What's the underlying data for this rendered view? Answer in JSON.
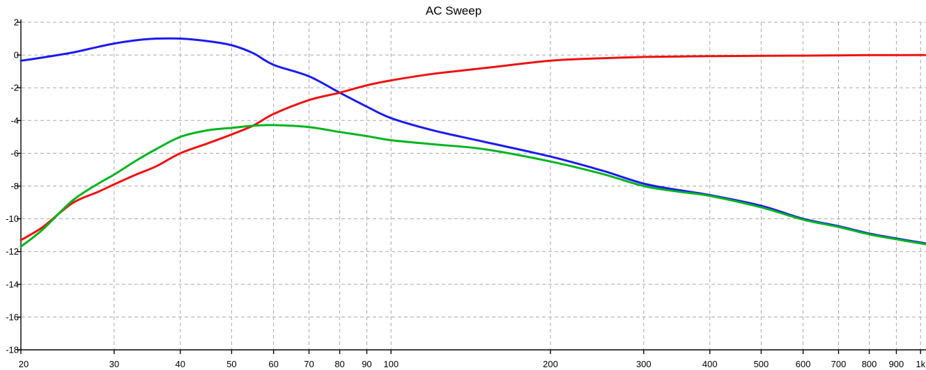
{
  "title": "AC Sweep",
  "colors": {
    "background": "#ffffff",
    "axis": "#000000",
    "grid": "#a8a8a8",
    "title_text": "#000000",
    "tick_text": "#000000"
  },
  "chart_data": {
    "type": "line",
    "title": "AC Sweep",
    "xlabel": "",
    "ylabel": "",
    "x_scale": "log",
    "xlim": [
      20,
      1020
    ],
    "ylim": [
      -18,
      2
    ],
    "grid": "dashed",
    "legend": "none",
    "x_ticks": [
      {
        "value": 20,
        "label": "20"
      },
      {
        "value": 30,
        "label": "30"
      },
      {
        "value": 40,
        "label": "40"
      },
      {
        "value": 50,
        "label": "50"
      },
      {
        "value": 60,
        "label": "60"
      },
      {
        "value": 70,
        "label": "70"
      },
      {
        "value": 80,
        "label": "80"
      },
      {
        "value": 90,
        "label": "90"
      },
      {
        "value": 100,
        "label": "100"
      },
      {
        "value": 200,
        "label": "200"
      },
      {
        "value": 300,
        "label": "300"
      },
      {
        "value": 400,
        "label": "400"
      },
      {
        "value": 500,
        "label": "500"
      },
      {
        "value": 600,
        "label": "600"
      },
      {
        "value": 700,
        "label": "700"
      },
      {
        "value": 800,
        "label": "800"
      },
      {
        "value": 900,
        "label": "900"
      },
      {
        "value": 1000,
        "label": "1k"
      }
    ],
    "y_ticks": [
      {
        "value": 2,
        "label": "2"
      },
      {
        "value": 0,
        "label": "0"
      },
      {
        "value": -2,
        "label": "-2"
      },
      {
        "value": -4,
        "label": "-4"
      },
      {
        "value": -6,
        "label": "-6"
      },
      {
        "value": -8,
        "label": "-8"
      },
      {
        "value": -10,
        "label": "-10"
      },
      {
        "value": -12,
        "label": "-12"
      },
      {
        "value": -14,
        "label": "-14"
      },
      {
        "value": -16,
        "label": "-16"
      },
      {
        "value": -18,
        "label": "-18"
      }
    ],
    "x": [
      20,
      22,
      25,
      28,
      30,
      33,
      36,
      40,
      45,
      50,
      55,
      60,
      70,
      80,
      90,
      100,
      120,
      150,
      200,
      250,
      300,
      350,
      400,
      500,
      600,
      700,
      800,
      900,
      1000,
      1020
    ],
    "series": [
      {
        "name": "blue",
        "color": "#1a1af0",
        "values": [
          -0.35,
          -0.15,
          0.15,
          0.5,
          0.7,
          0.9,
          1.0,
          1.0,
          0.85,
          0.6,
          0.1,
          -0.6,
          -1.3,
          -2.3,
          -3.15,
          -3.85,
          -4.6,
          -5.3,
          -6.2,
          -7.05,
          -7.85,
          -8.25,
          -8.55,
          -9.2,
          -10.0,
          -10.45,
          -10.9,
          -11.2,
          -11.45,
          -11.5
        ]
      },
      {
        "name": "red",
        "color": "#ee1111",
        "values": [
          -11.3,
          -10.5,
          -9.05,
          -8.35,
          -7.9,
          -7.3,
          -6.8,
          -6.0,
          -5.4,
          -4.85,
          -4.3,
          -3.6,
          -2.75,
          -2.3,
          -1.85,
          -1.55,
          -1.15,
          -0.8,
          -0.35,
          -0.2,
          -0.12,
          -0.09,
          -0.07,
          -0.05,
          -0.04,
          -0.02,
          -0.01,
          -0.01,
          0.0,
          0.0
        ]
      },
      {
        "name": "green",
        "color": "#00b41e",
        "values": [
          -11.7,
          -10.65,
          -8.9,
          -7.85,
          -7.3,
          -6.45,
          -5.75,
          -5.0,
          -4.6,
          -4.45,
          -4.32,
          -4.28,
          -4.4,
          -4.7,
          -4.95,
          -5.2,
          -5.45,
          -5.75,
          -6.5,
          -7.25,
          -8.0,
          -8.35,
          -8.6,
          -9.3,
          -10.05,
          -10.5,
          -10.95,
          -11.25,
          -11.5,
          -11.55
        ]
      }
    ]
  }
}
